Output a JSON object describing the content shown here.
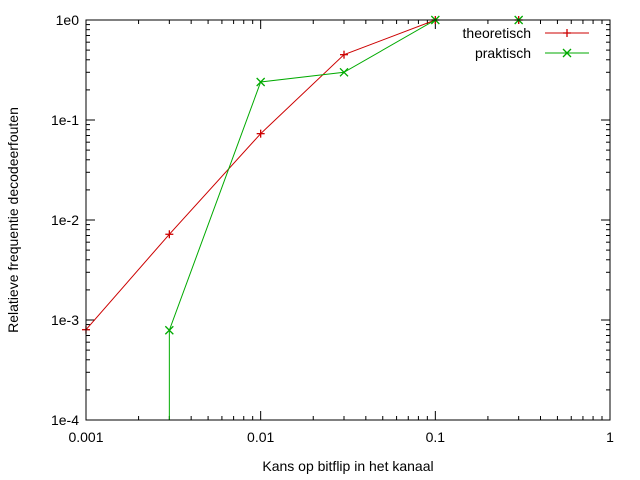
{
  "chart_data": {
    "type": "line",
    "xscale": "log",
    "yscale": "log",
    "xlim": [
      0.001,
      1
    ],
    "ylim": [
      0.0001,
      1
    ],
    "xlabel": "Kans op bitflip in het kanaal",
    "ylabel": "Relatieve frequentie decodeerfouten",
    "x_ticks": [
      {
        "value": 0.001,
        "label": "0.001"
      },
      {
        "value": 0.01,
        "label": "0.01"
      },
      {
        "value": 0.1,
        "label": "0.1"
      },
      {
        "value": 1,
        "label": "1"
      }
    ],
    "y_ticks": [
      {
        "value": 0.0001,
        "label": "1e-4"
      },
      {
        "value": 0.001,
        "label": "1e-3"
      },
      {
        "value": 0.01,
        "label": "1e-2"
      },
      {
        "value": 0.1,
        "label": "1e-1"
      },
      {
        "value": 1,
        "label": "1e0"
      }
    ],
    "grid": false,
    "legend_position": "top-right",
    "series": [
      {
        "name": "theoretisch",
        "color": "#cc0000",
        "marker": "plus",
        "points": [
          {
            "x": 0.001,
            "y": 0.0008
          },
          {
            "x": 0.003,
            "y": 0.0072
          },
          {
            "x": 0.01,
            "y": 0.073
          },
          {
            "x": 0.03,
            "y": 0.45
          },
          {
            "x": 0.1,
            "y": 1.0
          },
          {
            "x": 0.3,
            "y": 1.0
          }
        ]
      },
      {
        "name": "praktisch",
        "color": "#00aa00",
        "marker": "cross",
        "points": [
          {
            "x": 0.003,
            "y": 0.0001
          },
          {
            "x": 0.003,
            "y": 0.00079
          },
          {
            "x": 0.01,
            "y": 0.24
          },
          {
            "x": 0.03,
            "y": 0.3
          },
          {
            "x": 0.1,
            "y": 1.0
          },
          {
            "x": 0.3,
            "y": 1.0
          }
        ]
      }
    ]
  }
}
